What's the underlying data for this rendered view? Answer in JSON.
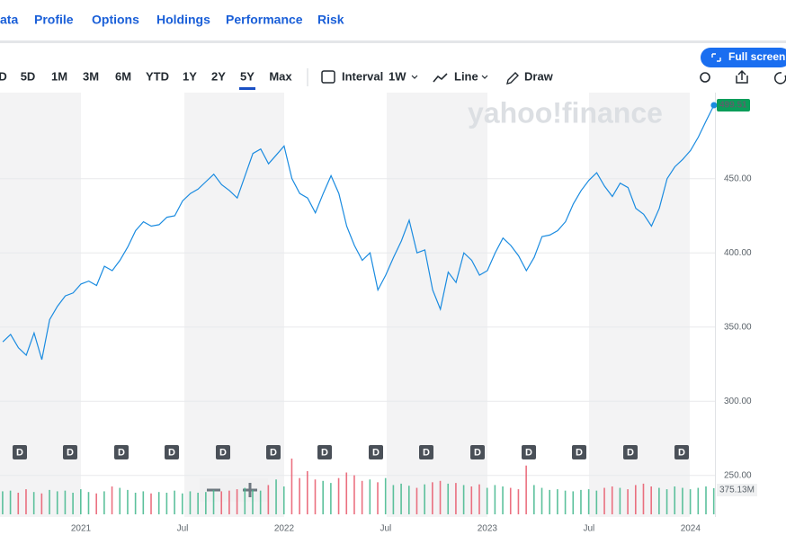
{
  "nav": [
    "ata",
    "Profile",
    "Options",
    "Holdings",
    "Performance",
    "Risk"
  ],
  "ranges": [
    "D",
    "5D",
    "1M",
    "3M",
    "6M",
    "YTD",
    "1Y",
    "2Y",
    "5Y",
    "Max"
  ],
  "selected_range": "5Y",
  "toolbar": {
    "interval_label": "Interval",
    "interval": "1W",
    "chart_type": "Line",
    "draw": "Draw",
    "full_screen": "Full screen"
  },
  "watermark": "yahoo!finance",
  "chart_data": {
    "type": "line",
    "categories": [
      null,
      null,
      null,
      null,
      null,
      null,
      null,
      null,
      null,
      null,
      "2021",
      null,
      null,
      null,
      null,
      null,
      null,
      null,
      null,
      null,
      null,
      null,
      null,
      "Jul",
      null,
      null,
      null,
      null,
      null,
      null,
      null,
      null,
      null,
      null,
      null,
      null,
      "2022",
      null,
      null,
      null,
      null,
      null,
      null,
      null,
      null,
      null,
      null,
      null,
      null,
      "Jul",
      null,
      null,
      null,
      null,
      null,
      null,
      null,
      null,
      null,
      null,
      null,
      null,
      "2023",
      null,
      null,
      null,
      null,
      null,
      null,
      null,
      null,
      null,
      null,
      null,
      null,
      "Jul",
      null,
      null,
      null,
      null,
      null,
      null,
      null,
      null,
      null,
      null,
      null,
      null,
      "2024",
      null,
      null,
      null
    ],
    "values": [
      340,
      345,
      336,
      331,
      346,
      328,
      355,
      364,
      371,
      373,
      379,
      381,
      378,
      391,
      388,
      395,
      404,
      415,
      421,
      418,
      419,
      424,
      425,
      435,
      440,
      443,
      448,
      453,
      446,
      442,
      437,
      452,
      467,
      470,
      460,
      466,
      472,
      450,
      440,
      437,
      427,
      440,
      452,
      440,
      418,
      405,
      395,
      400,
      375,
      385,
      397,
      408,
      422,
      400,
      402,
      375,
      362,
      387,
      380,
      400,
      395,
      385,
      388,
      400,
      410,
      405,
      398,
      388,
      397,
      411,
      412,
      415,
      421,
      433,
      442,
      449,
      454,
      445,
      438,
      447,
      444,
      430,
      426,
      418,
      430,
      450,
      458,
      463,
      469,
      478,
      489,
      499.51
    ],
    "color": "#1a8be0",
    "ylim": [
      225,
      508
    ],
    "yticks": [
      {
        "value": 250,
        "label": "250.00"
      },
      {
        "value": 300,
        "label": "300.00"
      },
      {
        "value": 350,
        "label": "350.00"
      },
      {
        "value": 400,
        "label": "400.00"
      },
      {
        "value": 450,
        "label": "450.00"
      }
    ],
    "grid": true,
    "dividend_label": "D",
    "volume": {
      "values": [
        330,
        340,
        310,
        360,
        320,
        300,
        350,
        330,
        340,
        310,
        360,
        320,
        300,
        330,
        400,
        380,
        350,
        310,
        330,
        300,
        320,
        310,
        340,
        300,
        330,
        310,
        320,
        350,
        330,
        340,
        360,
        380,
        350,
        340,
        420,
        500,
        400,
        800,
        520,
        620,
        500,
        480,
        450,
        520,
        600,
        560,
        480,
        500,
        460,
        520,
        420,
        440,
        410,
        380,
        430,
        460,
        480,
        440,
        450,
        420,
        400,
        430,
        380,
        420,
        400,
        380,
        360,
        700,
        420,
        380,
        350,
        360,
        340,
        330,
        350,
        360,
        340,
        380,
        400,
        380,
        360,
        420,
        440,
        400,
        380,
        360,
        400,
        380,
        360,
        380,
        400,
        375.13
      ],
      "ylim": [
        0,
        800
      ],
      "last_label": "375.13M"
    }
  }
}
